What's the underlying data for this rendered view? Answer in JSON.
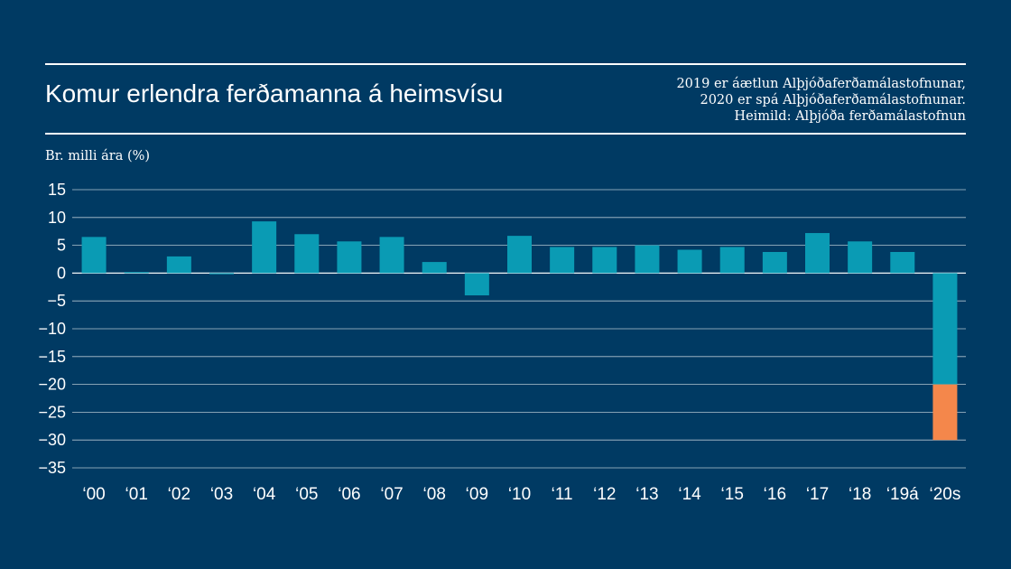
{
  "header": {
    "title": "Komur erlendra ferðamanna á heimsvísu",
    "notes": [
      "2019 er áætlun Alþjóðaferðamálastofnunar,",
      "2020 er spá Alþjóðaferðamálastofnunar.",
      "Heimild: Alþjóða ferðamálastofnun"
    ]
  },
  "colors": {
    "background": "#003a63",
    "bar": "#0a9bb4",
    "bar_highlight": "#f4874b",
    "gridline": "#ffffff"
  },
  "chart_data": {
    "type": "bar",
    "title": "Komur erlendra ferðamanna á heimsvísu",
    "xlabel": "",
    "ylabel": "Br. milli ára (%)",
    "ylim": [
      -35,
      15
    ],
    "yticks": [
      15,
      10,
      5,
      0,
      -5,
      -10,
      -15,
      -20,
      -25,
      -30,
      -35
    ],
    "grid": true,
    "categories": [
      "‘00",
      "‘01",
      "‘02",
      "‘03",
      "‘04",
      "‘05",
      "‘06",
      "‘07",
      "‘08",
      "‘09",
      "‘10",
      "‘11",
      "‘12",
      "‘13",
      "‘14",
      "‘15",
      "‘16",
      "‘17",
      "‘18",
      "‘19á",
      "‘20s"
    ],
    "series": [
      {
        "color": "#0a9bb4",
        "values": [
          6.5,
          0.2,
          3.0,
          -0.2,
          9.3,
          7.0,
          5.7,
          6.5,
          2.0,
          -4.0,
          6.7,
          4.7,
          4.7,
          5.0,
          4.2,
          4.7,
          3.8,
          7.2,
          5.7,
          3.8,
          -20
        ]
      },
      {
        "color": "#f4874b",
        "values": [
          0,
          0,
          0,
          0,
          0,
          0,
          0,
          0,
          0,
          0,
          0,
          0,
          0,
          0,
          0,
          0,
          0,
          0,
          0,
          0,
          -10
        ]
      }
    ],
    "stacked": true,
    "legend": "none"
  }
}
